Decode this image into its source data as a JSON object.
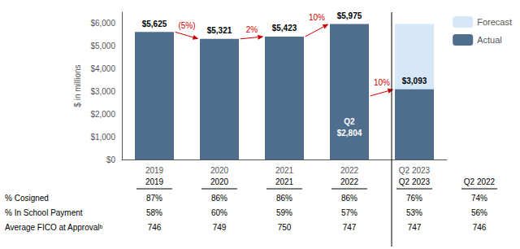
{
  "chart_data": {
    "type": "bar",
    "categories": [
      "2019",
      "2020",
      "2021",
      "2022",
      "Q2 2023"
    ],
    "series": [
      {
        "name": "Forecast",
        "color": "#d6e8f7",
        "values": [
          null,
          null,
          null,
          null,
          5975
        ]
      },
      {
        "name": "Actual",
        "color": "#4f6e8e",
        "values": [
          5625,
          5321,
          5423,
          5975,
          3093
        ],
        "value_labels": [
          "$5,625",
          "$5,321",
          "$5,423",
          "$5,975",
          "$3,093"
        ],
        "data_labels": true
      }
    ],
    "ylabel": "$ in millions",
    "ylim": [
      0,
      6500
    ],
    "yticks": [
      {
        "value": 0,
        "label": "$0"
      },
      {
        "value": 1000,
        "label": "$1,000"
      },
      {
        "value": 2000,
        "label": "$2,000"
      },
      {
        "value": 3000,
        "label": "$3,000"
      },
      {
        "value": 4000,
        "label": "$4,000"
      },
      {
        "value": 5000,
        "label": "$5,000"
      },
      {
        "value": 6000,
        "label": "$6,000"
      }
    ],
    "grid": false,
    "legend": "upper right",
    "arrows": [
      {
        "text": "(5%)",
        "color": "#cc0000",
        "from": {
          "category": "2019",
          "value": 5625
        },
        "to": {
          "category": "2020",
          "value": 5321
        }
      },
      {
        "text": "2%",
        "color": "#cc0000",
        "from": {
          "category": "2020",
          "value": 5321
        },
        "to": {
          "category": "2021",
          "value": 5423
        }
      },
      {
        "text": "10%",
        "color": "#cc0000",
        "from": {
          "category": "2021",
          "value": 5423
        },
        "to": {
          "category": "2022",
          "value": 5975
        }
      },
      {
        "text": "10%",
        "color": "#cc0000",
        "from": {
          "category": "2022",
          "value": 2804
        },
        "to": {
          "category": "Q2 2023",
          "value": 3093
        }
      }
    ],
    "annotations": [
      {
        "text": "Q2",
        "category": "2022",
        "value": 2804,
        "value_label": "$2,804",
        "color": "#ffffff"
      }
    ],
    "table": {
      "headers": [
        "2019",
        "2020",
        "2021",
        "2022",
        "Q2 2023",
        "Q2 2022"
      ],
      "rows": [
        {
          "label": "% Cosigned",
          "values": [
            "87%",
            "86%",
            "86%",
            "86%",
            "76%",
            "74%"
          ]
        },
        {
          "label": "% In School Payment",
          "values": [
            "58%",
            "60%",
            "59%",
            "57%",
            "53%",
            "56%"
          ]
        },
        {
          "label": "Average FICO at Approvalᵇ",
          "values": [
            "746",
            "749",
            "750",
            "747",
            "747",
            "746"
          ]
        }
      ]
    }
  }
}
